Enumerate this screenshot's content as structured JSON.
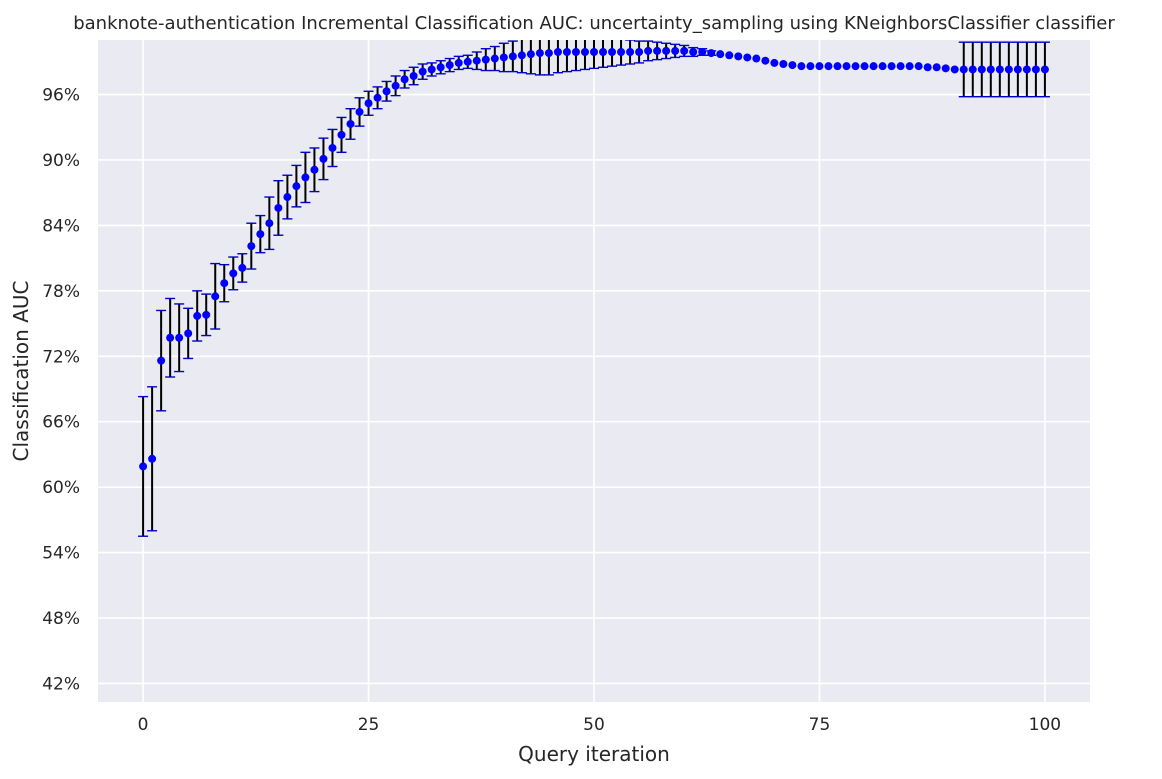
{
  "chart_data": {
    "type": "scatter",
    "title": "banknote-authentication Incremental Classification AUC: uncertainty_sampling using KNeighborsClassifier classifier",
    "xlabel": "Query iteration",
    "ylabel": "Classification AUC",
    "xlim": [
      -5,
      105
    ],
    "ylim": [
      0.403,
      1.01
    ],
    "xticks": [
      0,
      25,
      50,
      75,
      100
    ],
    "xtick_labels": [
      "0",
      "25",
      "50",
      "75",
      "100"
    ],
    "yticks": [
      0.42,
      0.48,
      0.54,
      0.6,
      0.66,
      0.72,
      0.78,
      0.84,
      0.9,
      0.96
    ],
    "ytick_labels": [
      "42%",
      "48%",
      "54%",
      "60%",
      "66%",
      "72%",
      "78%",
      "84%",
      "90%",
      "96%"
    ],
    "grid": true,
    "background_color": "#eaeaf2",
    "grid_color": "#ffffff",
    "marker_color": "#0000ff",
    "errorbar_color": "#000000",
    "cap_color": "#0000cc",
    "series": [
      {
        "x": [
          0,
          1,
          2,
          3,
          4,
          5,
          6,
          7,
          8,
          9,
          10,
          11,
          12,
          13,
          14,
          15,
          16,
          17,
          18,
          19,
          20,
          21,
          22,
          23,
          24,
          25,
          26,
          27,
          28,
          29,
          30,
          31,
          32,
          33,
          34,
          35,
          36,
          37,
          38,
          39,
          40,
          41,
          42,
          43,
          44,
          45,
          46,
          47,
          48,
          49,
          50,
          51,
          52,
          53,
          54,
          55,
          56,
          57,
          58,
          59,
          60,
          61,
          62,
          63,
          64,
          65,
          66,
          67,
          68,
          69,
          70,
          71,
          72,
          73,
          74,
          75,
          76,
          77,
          78,
          79,
          80,
          81,
          82,
          83,
          84,
          85,
          86,
          87,
          88,
          89,
          90,
          91,
          92,
          93,
          94,
          95,
          96,
          97,
          98,
          99,
          100
        ],
        "y": [
          0.619,
          0.626,
          0.716,
          0.737,
          0.737,
          0.741,
          0.757,
          0.758,
          0.775,
          0.787,
          0.796,
          0.801,
          0.821,
          0.832,
          0.842,
          0.856,
          0.866,
          0.876,
          0.884,
          0.891,
          0.901,
          0.911,
          0.923,
          0.933,
          0.944,
          0.952,
          0.957,
          0.963,
          0.968,
          0.974,
          0.977,
          0.981,
          0.983,
          0.985,
          0.987,
          0.989,
          0.99,
          0.991,
          0.992,
          0.993,
          0.994,
          0.995,
          0.996,
          0.997,
          0.998,
          0.998,
          0.999,
          0.999,
          0.999,
          0.999,
          0.999,
          0.999,
          0.999,
          0.999,
          0.999,
          0.999,
          1.0,
          1.0,
          1.0,
          1.0,
          1.0,
          0.999,
          0.999,
          0.998,
          0.997,
          0.996,
          0.995,
          0.994,
          0.993,
          0.991,
          0.989,
          0.988,
          0.987,
          0.986,
          0.986,
          0.986,
          0.986,
          0.986,
          0.986,
          0.986,
          0.986,
          0.986,
          0.986,
          0.986,
          0.986,
          0.986,
          0.986,
          0.985,
          0.985,
          0.984,
          0.983,
          0.983,
          0.983,
          0.983,
          0.983,
          0.983,
          0.983,
          0.983,
          0.983,
          0.983,
          0.983
        ],
        "err": [
          0.064,
          0.066,
          0.046,
          0.036,
          0.031,
          0.023,
          0.023,
          0.019,
          0.03,
          0.017,
          0.015,
          0.013,
          0.021,
          0.017,
          0.024,
          0.025,
          0.02,
          0.019,
          0.023,
          0.02,
          0.019,
          0.017,
          0.016,
          0.014,
          0.013,
          0.011,
          0.01,
          0.009,
          0.009,
          0.008,
          0.008,
          0.007,
          0.006,
          0.006,
          0.006,
          0.006,
          0.006,
          0.008,
          0.01,
          0.011,
          0.013,
          0.014,
          0.016,
          0.018,
          0.02,
          0.02,
          0.019,
          0.018,
          0.017,
          0.016,
          0.015,
          0.014,
          0.013,
          0.012,
          0.011,
          0.01,
          0.009,
          0.008,
          0.007,
          0.006,
          0.005,
          0.004,
          0.003,
          0.002,
          0.001,
          0.001,
          0.001,
          0.001,
          0.001,
          0.001,
          0.001,
          0.001,
          0.001,
          0.001,
          0.001,
          0.001,
          0.001,
          0.001,
          0.001,
          0.001,
          0.001,
          0.001,
          0.001,
          0.001,
          0.001,
          0.001,
          0.001,
          0.001,
          0.001,
          0.001,
          0.001,
          0.025,
          0.025,
          0.025,
          0.025,
          0.025,
          0.025,
          0.025,
          0.025,
          0.025,
          0.025
        ]
      }
    ]
  }
}
